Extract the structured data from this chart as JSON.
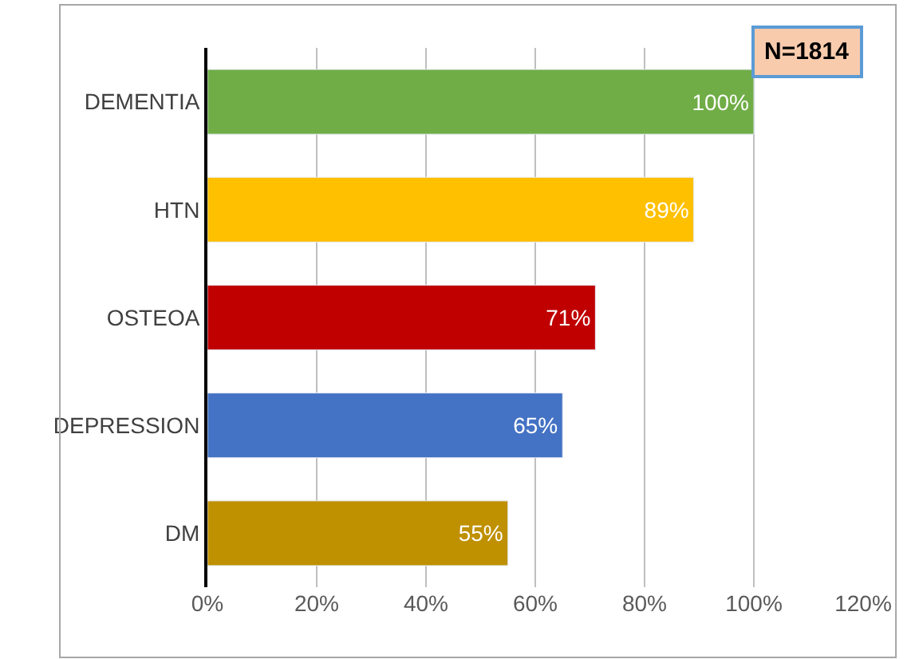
{
  "chart_data": {
    "type": "bar",
    "orientation": "horizontal",
    "categories": [
      "DEMENTIA",
      "HTN",
      "OSTEOA",
      "DEPRESSION",
      "DM"
    ],
    "values": [
      100,
      89,
      71,
      65,
      55
    ],
    "colors": [
      "#70ad47",
      "#ffc000",
      "#c00000",
      "#4472c4",
      "#bf9000"
    ],
    "value_labels": [
      "100%",
      "89%",
      "71%",
      "65%",
      "55%"
    ],
    "xlim": [
      0,
      120
    ],
    "xticks": [
      {
        "value": 0,
        "label": "0%"
      },
      {
        "value": 20,
        "label": "20%"
      },
      {
        "value": 40,
        "label": "40%"
      },
      {
        "value": 60,
        "label": "60%"
      },
      {
        "value": 80,
        "label": "80%"
      },
      {
        "value": 100,
        "label": "100%"
      },
      {
        "value": 120,
        "label": "120%"
      }
    ],
    "grid": "x",
    "annotations": [
      "N=1814"
    ]
  }
}
